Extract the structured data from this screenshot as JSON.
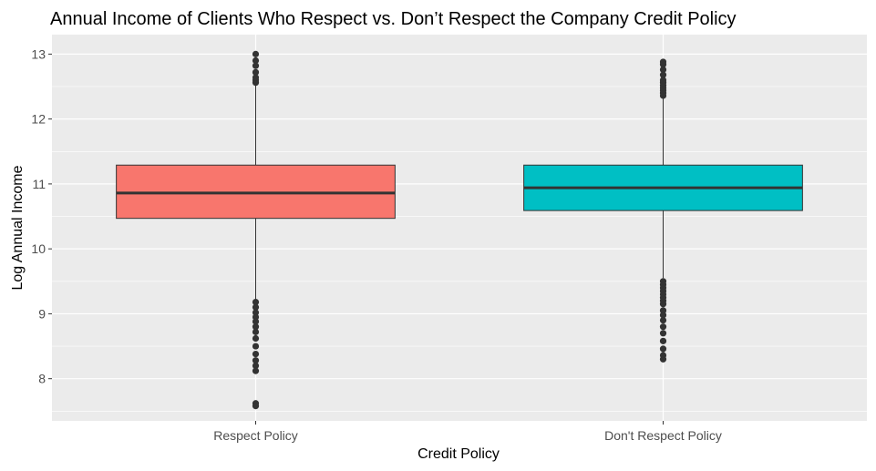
{
  "chart_data": {
    "type": "boxplot",
    "title": "Annual Income of Clients Who Respect vs. Don’t Respect the Company Credit Policy",
    "xlabel": "Credit Policy",
    "ylabel": "Log Annual Income",
    "ylim": [
      7.35,
      13.3
    ],
    "y_ticks": [
      8,
      9,
      10,
      11,
      12,
      13
    ],
    "grid": true,
    "categories": [
      "Respect Policy",
      "Don't Respect Policy"
    ],
    "colors": [
      "#f8766d",
      "#00bfc4"
    ],
    "boxes": [
      {
        "category": "Respect Policy",
        "q1": 10.47,
        "median": 10.86,
        "q3": 11.29,
        "whisker_low": 9.22,
        "whisker_high": 12.54,
        "outliers": [
          12.56,
          12.6,
          12.64,
          12.72,
          12.82,
          12.9,
          13.0,
          9.18,
          9.1,
          9.02,
          8.95,
          8.88,
          8.8,
          8.72,
          8.62,
          8.5,
          8.38,
          8.28,
          8.2,
          8.12,
          7.62,
          7.58
        ]
      },
      {
        "category": "Don't Respect Policy",
        "q1": 10.59,
        "median": 10.94,
        "q3": 11.29,
        "whisker_low": 9.55,
        "whisker_high": 12.32,
        "outliers": [
          12.36,
          12.4,
          12.44,
          12.48,
          12.52,
          12.56,
          12.6,
          12.68,
          12.76,
          12.84,
          12.88,
          9.5,
          9.45,
          9.4,
          9.35,
          9.3,
          9.25,
          9.2,
          9.15,
          9.05,
          8.98,
          8.9,
          8.8,
          8.7,
          8.58,
          8.46,
          8.36,
          8.3
        ]
      }
    ]
  }
}
